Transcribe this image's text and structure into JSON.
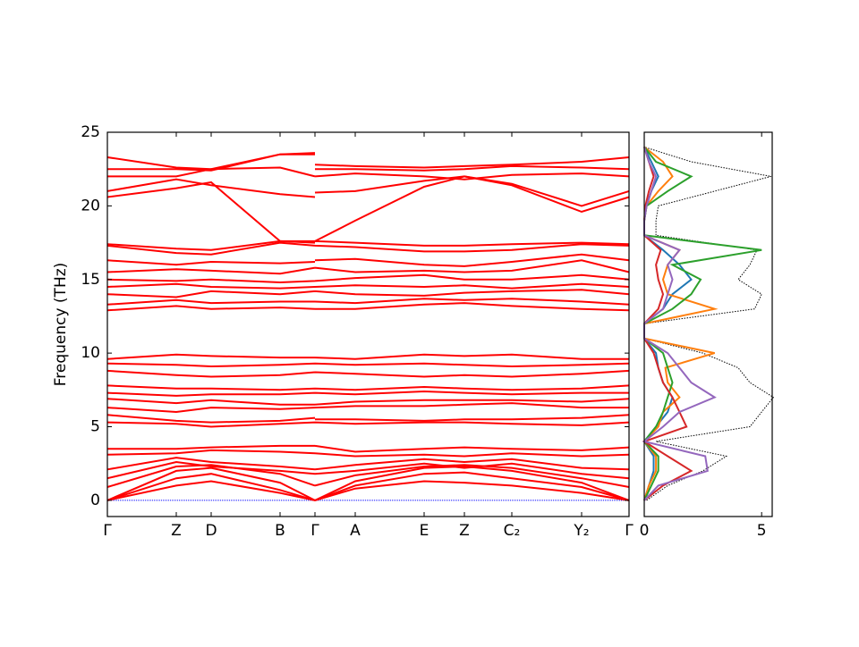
{
  "chart_data": [
    {
      "type": "band",
      "ylabel": "Frequency (THz)",
      "color": "#ff0000",
      "x": [
        0,
        0.77,
        1.16,
        1.93,
        2.32,
        2.32,
        2.77,
        3.54,
        3.99,
        4.52,
        5.3,
        5.83
      ],
      "xlim": [
        0,
        5.83
      ],
      "xticks": [
        {
          "value": 0,
          "label": "Γ"
        },
        {
          "value": 0.77,
          "label": "Z"
        },
        {
          "value": 1.16,
          "label": "D"
        },
        {
          "value": 1.93,
          "label": "B"
        },
        {
          "value": 2.32,
          "label": "Γ"
        },
        {
          "value": 2.77,
          "label": "A"
        },
        {
          "value": 3.54,
          "label": "E"
        },
        {
          "value": 3.99,
          "label": "Z"
        },
        {
          "value": 4.52,
          "label": "C₂"
        },
        {
          "value": 5.3,
          "label": "Y₂"
        },
        {
          "value": 5.83,
          "label": "Γ"
        }
      ],
      "ylim": [
        -1.1,
        25
      ],
      "yticks": [
        0,
        5,
        10,
        15,
        20,
        25
      ],
      "bands": [
        [
          0,
          1.0,
          1.3,
          0.5,
          0,
          0,
          0.8,
          1.3,
          1.2,
          1.0,
          0.5,
          0
        ],
        [
          0,
          1.5,
          1.8,
          0.7,
          0,
          0,
          1.0,
          1.8,
          1.9,
          1.5,
          0.9,
          0
        ],
        [
          0,
          2.0,
          2.2,
          1.2,
          0,
          0,
          1.3,
          2.2,
          2.3,
          2.0,
          1.2,
          0
        ],
        [
          0.9,
          2.3,
          2.4,
          1.8,
          1.0,
          1.0,
          1.7,
          2.3,
          2.4,
          2.2,
          1.5,
          0.9
        ],
        [
          1.5,
          2.6,
          2.3,
          2.0,
          1.8,
          1.8,
          2.0,
          2.5,
          2.2,
          2.5,
          1.8,
          1.5
        ],
        [
          2.1,
          2.9,
          2.6,
          2.3,
          2.1,
          2.1,
          2.4,
          2.8,
          2.6,
          2.8,
          2.2,
          2.1
        ],
        [
          3.1,
          3.2,
          3.4,
          3.3,
          3.2,
          3.2,
          3.0,
          3.1,
          3.0,
          3.2,
          3.0,
          3.1
        ],
        [
          3.5,
          3.5,
          3.6,
          3.7,
          3.7,
          3.7,
          3.3,
          3.5,
          3.6,
          3.5,
          3.4,
          3.6
        ],
        [
          5.3,
          5.2,
          5.0,
          5.2,
          5.3,
          5.3,
          5.2,
          5.3,
          5.3,
          5.2,
          5.1,
          5.3
        ],
        [
          5.8,
          5.4,
          5.3,
          5.4,
          5.6,
          5.5,
          5.5,
          5.4,
          5.5,
          5.5,
          5.6,
          5.8
        ],
        [
          6.3,
          6.0,
          6.3,
          6.2,
          6.3,
          6.3,
          6.4,
          6.4,
          6.5,
          6.6,
          6.3,
          6.3
        ],
        [
          6.9,
          6.6,
          6.8,
          6.5,
          6.5,
          6.5,
          6.7,
          6.8,
          6.8,
          6.8,
          6.7,
          6.9
        ],
        [
          7.3,
          7.1,
          7.2,
          7.2,
          7.3,
          7.3,
          7.2,
          7.4,
          7.3,
          7.2,
          7.3,
          7.3
        ],
        [
          7.8,
          7.6,
          7.6,
          7.5,
          7.6,
          7.6,
          7.5,
          7.7,
          7.6,
          7.5,
          7.6,
          7.8
        ],
        [
          8.8,
          8.5,
          8.4,
          8.5,
          8.7,
          8.7,
          8.6,
          8.4,
          8.5,
          8.4,
          8.6,
          8.8
        ],
        [
          9.3,
          9.2,
          9.1,
          9.2,
          9.3,
          9.3,
          9.2,
          9.3,
          9.2,
          9.1,
          9.2,
          9.3
        ],
        [
          9.6,
          9.9,
          9.8,
          9.7,
          9.7,
          9.7,
          9.6,
          9.9,
          9.8,
          9.9,
          9.6,
          9.6
        ],
        [
          12.9,
          13.2,
          13.0,
          13.1,
          13.0,
          13.0,
          13.0,
          13.3,
          13.4,
          13.2,
          13.0,
          12.9
        ],
        [
          13.3,
          13.6,
          13.4,
          13.5,
          13.5,
          13.5,
          13.4,
          13.7,
          13.6,
          13.7,
          13.5,
          13.3
        ],
        [
          14.0,
          13.8,
          14.2,
          14.0,
          14.2,
          14.2,
          14.0,
          13.9,
          14.1,
          14.2,
          14.3,
          14.0
        ],
        [
          14.5,
          14.7,
          14.5,
          14.4,
          14.5,
          14.5,
          14.6,
          14.5,
          14.6,
          14.4,
          14.7,
          14.5
        ],
        [
          15.0,
          14.9,
          15.0,
          14.8,
          14.9,
          14.9,
          15.1,
          15.3,
          15.0,
          15.0,
          15.3,
          15.0
        ],
        [
          15.5,
          15.7,
          15.6,
          15.4,
          15.8,
          15.8,
          15.5,
          15.6,
          15.5,
          15.6,
          16.3,
          15.5
        ],
        [
          16.3,
          16.0,
          16.2,
          16.1,
          16.2,
          16.3,
          16.4,
          16.0,
          15.9,
          16.2,
          16.7,
          16.3
        ],
        [
          17.3,
          16.8,
          16.7,
          17.5,
          17.3,
          17.3,
          17.2,
          16.9,
          16.9,
          17.0,
          17.4,
          17.3
        ],
        [
          17.4,
          17.1,
          17.0,
          17.6,
          17.5,
          17.6,
          17.5,
          17.3,
          17.3,
          17.4,
          17.5,
          17.4
        ],
        [
          20.6,
          21.2,
          21.6,
          17.6,
          17.6,
          17.6,
          19.0,
          21.3,
          22.0,
          21.4,
          19.6,
          20.6
        ],
        [
          21.0,
          21.8,
          21.4,
          20.8,
          20.6,
          20.9,
          21.0,
          21.7,
          22.0,
          21.5,
          20.0,
          21.0
        ],
        [
          22.0,
          22.0,
          22.5,
          22.6,
          22.0,
          22.0,
          22.2,
          22.0,
          21.8,
          22.1,
          22.2,
          22.0
        ],
        [
          22.5,
          22.5,
          22.4,
          23.5,
          23.5,
          22.5,
          22.5,
          22.4,
          22.5,
          22.7,
          22.6,
          22.5
        ],
        [
          23.3,
          22.6,
          22.5,
          23.5,
          23.6,
          22.8,
          22.7,
          22.6,
          22.7,
          22.8,
          23.0,
          23.3
        ]
      ]
    },
    {
      "type": "dos",
      "y": [
        0,
        1,
        2,
        3,
        4,
        5,
        6,
        7,
        8,
        9,
        10,
        11,
        12,
        13,
        14,
        15,
        16,
        17,
        18,
        19,
        20,
        21,
        22,
        23,
        24
      ],
      "ylim": [
        -1.1,
        25
      ],
      "xlim": [
        0,
        5.45
      ],
      "xticks": [
        0,
        5
      ],
      "total": {
        "color": "#000000",
        "values": [
          0.1,
          1.0,
          2.5,
          3.5,
          0.5,
          4.5,
          5.0,
          5.5,
          4.5,
          4.0,
          2.5,
          0,
          0,
          4.7,
          5.0,
          4.0,
          4.5,
          4.8,
          0.5,
          0.5,
          0.6,
          3.0,
          5.4,
          2.0,
          0
        ]
      },
      "series": [
        {
          "color": "#1f77b4",
          "values": [
            0,
            0.2,
            0.4,
            0.4,
            0,
            0.5,
            1.0,
            1.2,
            0.8,
            0.6,
            0.5,
            0,
            0,
            0.8,
            1.2,
            2.0,
            1.5,
            0.8,
            0,
            0,
            0.1,
            0.3,
            0.6,
            0.3,
            0
          ]
        },
        {
          "color": "#ff7f0e",
          "values": [
            0,
            0.2,
            0.5,
            0.5,
            0,
            0.6,
            0.8,
            1.5,
            1.0,
            0.9,
            3.0,
            0,
            0,
            3.0,
            1.0,
            0.8,
            1.0,
            1.5,
            0,
            0,
            0.1,
            0.6,
            1.2,
            0.8,
            0
          ]
        },
        {
          "color": "#2ca02c",
          "values": [
            0,
            0.3,
            0.6,
            0.6,
            0,
            0.5,
            0.8,
            1.0,
            1.2,
            1.0,
            0.8,
            0,
            0,
            1.2,
            2.0,
            2.4,
            1.2,
            5.0,
            0,
            0,
            0.1,
            1.0,
            2.0,
            0.5,
            0
          ]
        },
        {
          "color": "#d62728",
          "values": [
            0,
            0.8,
            2.0,
            1.0,
            0,
            1.8,
            1.5,
            1.2,
            0.8,
            0.6,
            0.4,
            0,
            0,
            0.6,
            0.8,
            0.6,
            0.5,
            0.7,
            0,
            0,
            0.05,
            0.2,
            0.4,
            0.2,
            0
          ]
        },
        {
          "color": "#9467bd",
          "values": [
            0,
            0.6,
            2.7,
            2.6,
            0,
            0.8,
            1.5,
            3.0,
            2.0,
            1.5,
            1.0,
            0,
            0,
            0.8,
            1.0,
            1.2,
            1.0,
            1.5,
            0,
            0,
            0.1,
            0.3,
            0.5,
            0.2,
            0
          ]
        }
      ]
    }
  ]
}
